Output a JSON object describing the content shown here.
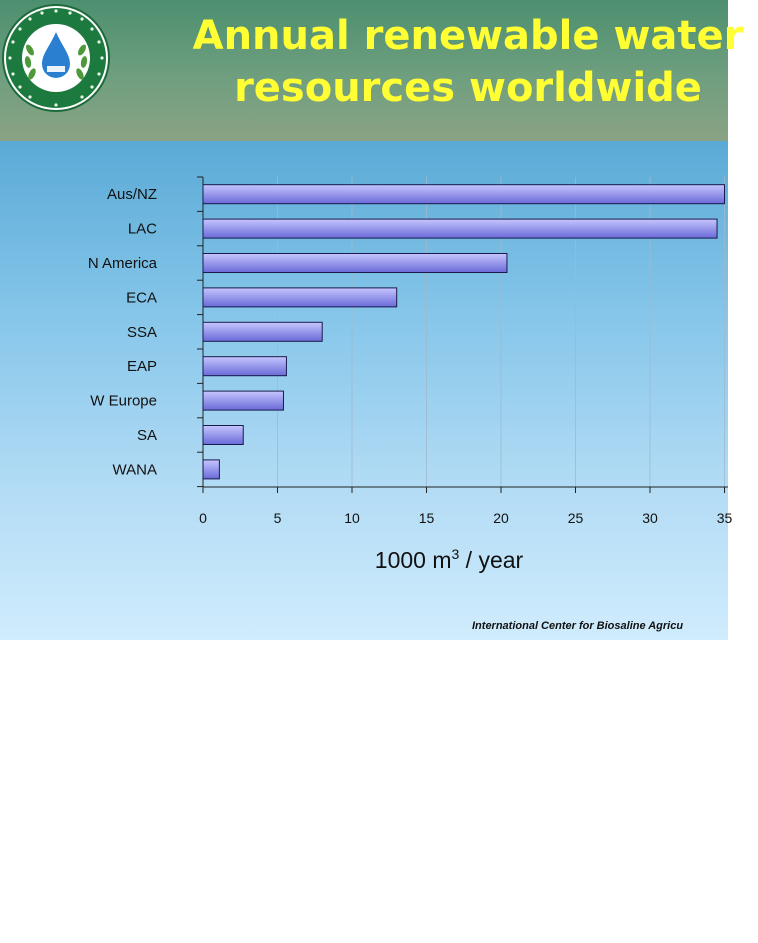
{
  "slide": {
    "title_line1": "Annual renewable water",
    "title_line2": "resources worldwide",
    "source": "International Center for Biosaline Agricu"
  },
  "colors": {
    "title": "#ffff33",
    "bar_fill_light": "#c6c6ff",
    "bar_fill_dark": "#6a6ad8",
    "bar_stroke": "#1a1a4a"
  },
  "chart_data": {
    "type": "bar",
    "orientation": "horizontal",
    "categories": [
      "Aus/NZ",
      "LAC",
      "N America",
      "ECA",
      "SSA",
      "EAP",
      "W Europe",
      "SA",
      "WANA"
    ],
    "values": [
      35,
      34.5,
      20.4,
      13,
      8,
      5.6,
      5.4,
      2.7,
      1.1
    ],
    "xlabel_prefix": "1000 m",
    "xlabel_superscript": "3",
    "xlabel_suffix": " / year",
    "x_ticks": [
      "0",
      "5",
      "10",
      "15",
      "20",
      "25",
      "30",
      "35"
    ],
    "xlim": [
      0,
      35
    ],
    "grid": true,
    "legend": "none"
  }
}
